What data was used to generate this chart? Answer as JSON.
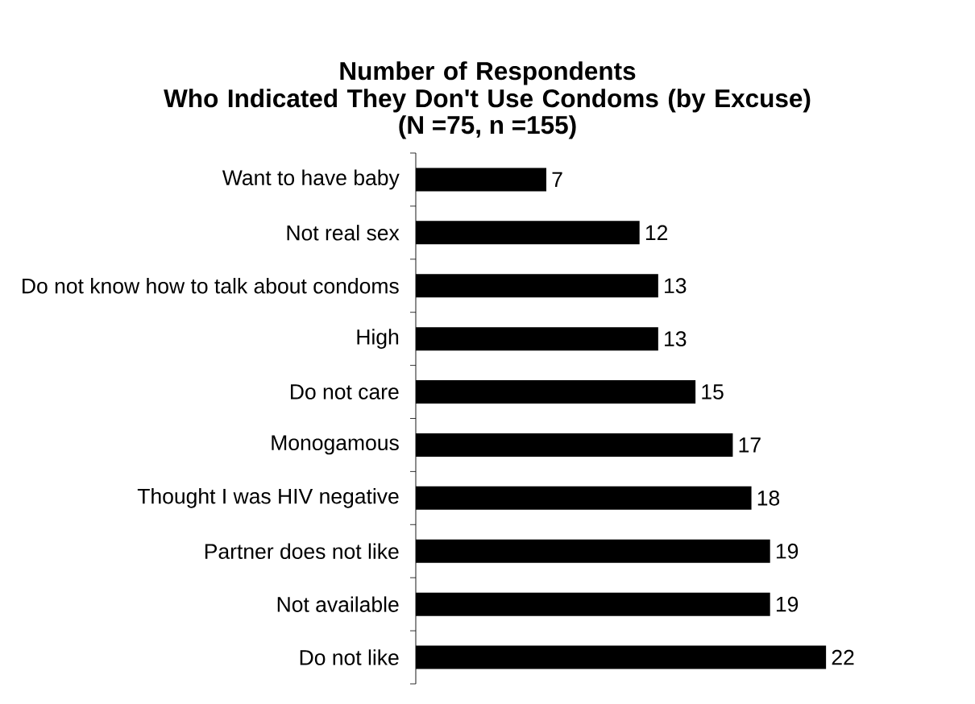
{
  "chart_data": {
    "type": "bar",
    "orientation": "horizontal",
    "title": "Number of Respondents Who Indicated They Don't Use Condoms (by Excuse)",
    "subtitle": "(N =75, n =155)",
    "categories": [
      "Want to have baby",
      "Not real sex",
      "Do not know how to talk about condoms",
      "High",
      "Do not care",
      "Monogamous",
      "Thought I was HIV negative",
      "Partner does not like",
      "Not available",
      "Do not like"
    ],
    "values": [
      7,
      12,
      13,
      13,
      15,
      17,
      18,
      19,
      19,
      22
    ],
    "color": "#000000",
    "data_labels": true
  }
}
